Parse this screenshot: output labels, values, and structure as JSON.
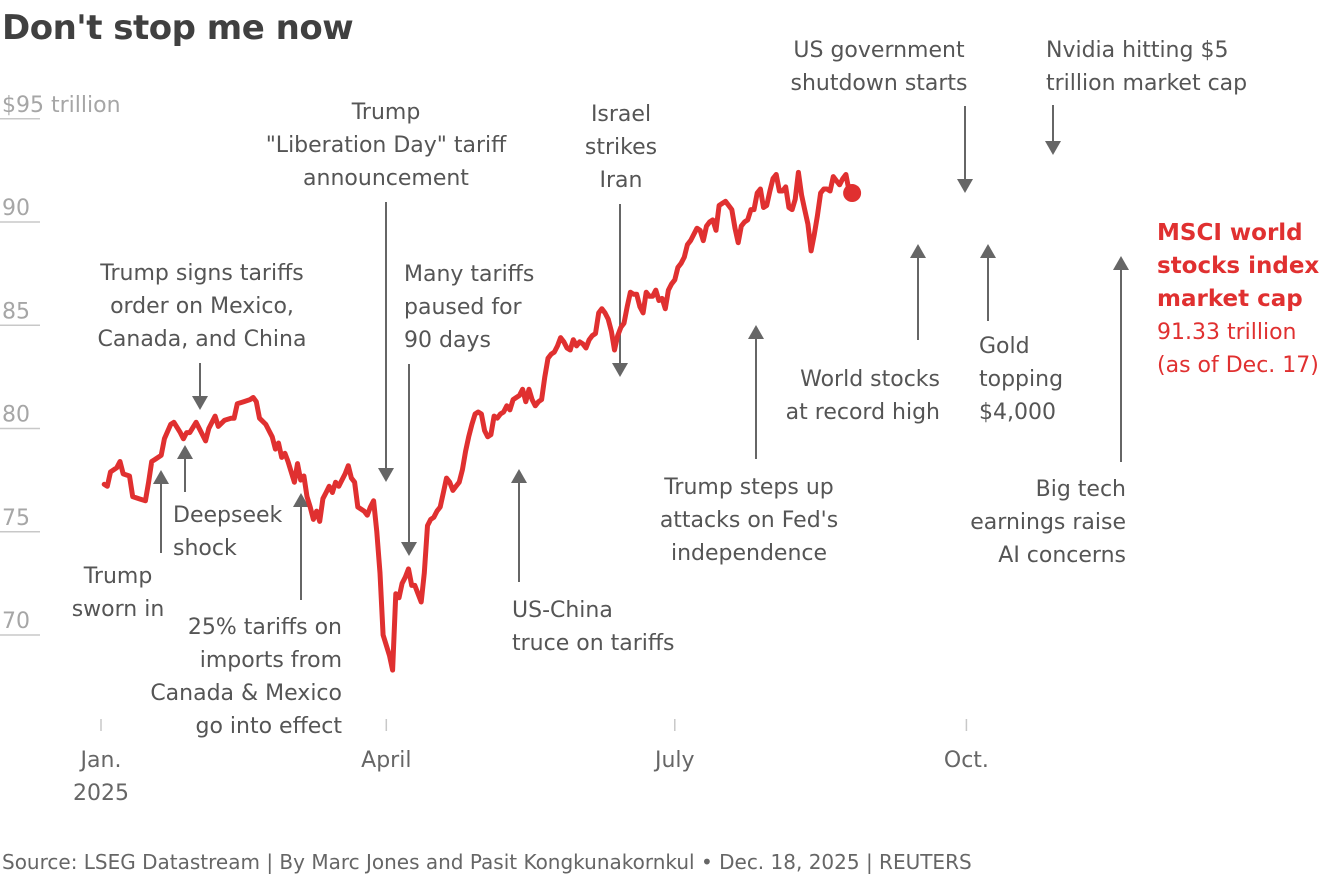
{
  "title": "Don't stop me now",
  "source": "Source: LSEG Datastream | By Marc Jones and Pasit Kongkunakornkul • Dec. 18, 2025 | REUTERS",
  "colors": {
    "line": "#e03030",
    "annotation": "#555555",
    "axis": "#a6a6a6"
  },
  "chart_data": {
    "type": "line",
    "title": "Don't stop me now",
    "ylabel": "$ trillion",
    "ylim": [
      68,
      95
    ],
    "y_ticks": [
      {
        "value": 95,
        "label": "$95",
        "suffix": " trillion"
      },
      {
        "value": 90,
        "label": "90"
      },
      {
        "value": 85,
        "label": "85"
      },
      {
        "value": 80,
        "label": "80"
      },
      {
        "value": 75,
        "label": "75"
      },
      {
        "value": 70,
        "label": "70"
      }
    ],
    "x_unit": "day of 2025",
    "xlim": [
      0,
      365
    ],
    "x_ticks": [
      {
        "value": 0,
        "lines": [
          "Jan.",
          "2025"
        ]
      },
      {
        "value": 90,
        "lines": [
          "April"
        ]
      },
      {
        "value": 181,
        "lines": [
          "July"
        ]
      },
      {
        "value": 273,
        "lines": [
          "Oct."
        ]
      }
    ],
    "series": [
      {
        "name": "MSCI world stocks index market cap",
        "points": [
          [
            1,
            77.3
          ],
          [
            2,
            77.2
          ],
          [
            3,
            77.9
          ],
          [
            5,
            78.1
          ],
          [
            6,
            78.4
          ],
          [
            7,
            77.8
          ],
          [
            9,
            77.7
          ],
          [
            10,
            76.7
          ],
          [
            12,
            76.6
          ],
          [
            14,
            76.5
          ],
          [
            15,
            77.4
          ],
          [
            16,
            78.4
          ],
          [
            17,
            78.5
          ],
          [
            19,
            78.7
          ],
          [
            20,
            79.5
          ],
          [
            22,
            80.2
          ],
          [
            23,
            80.3
          ],
          [
            25,
            79.8
          ],
          [
            26,
            79.5
          ],
          [
            27,
            79.8
          ],
          [
            28,
            79.8
          ],
          [
            30,
            80.3
          ],
          [
            31,
            80.0
          ],
          [
            33,
            79.4
          ],
          [
            34,
            80.0
          ],
          [
            36,
            80.6
          ],
          [
            37,
            80.1
          ],
          [
            39,
            80.4
          ],
          [
            41,
            80.5
          ],
          [
            42,
            80.5
          ],
          [
            43,
            81.2
          ],
          [
            45,
            81.3
          ],
          [
            47,
            81.4
          ],
          [
            48,
            81.5
          ],
          [
            49,
            81.3
          ],
          [
            50,
            80.5
          ],
          [
            52,
            80.2
          ],
          [
            53,
            79.9
          ],
          [
            54,
            79.6
          ],
          [
            55,
            79.0
          ],
          [
            56,
            79.3
          ],
          [
            57,
            78.6
          ],
          [
            58,
            78.8
          ],
          [
            59,
            78.4
          ],
          [
            60,
            77.9
          ],
          [
            61,
            77.4
          ],
          [
            62,
            78.3
          ],
          [
            63,
            77.5
          ],
          [
            64,
            77.7
          ],
          [
            65,
            76.7
          ],
          [
            66,
            76.2
          ],
          [
            67,
            75.6
          ],
          [
            68,
            76.0
          ],
          [
            69,
            75.5
          ],
          [
            70,
            76.6
          ],
          [
            71,
            76.9
          ],
          [
            72,
            77.2
          ],
          [
            73,
            76.9
          ],
          [
            74,
            77.4
          ],
          [
            75,
            77.2
          ],
          [
            76,
            77.5
          ],
          [
            77,
            77.8
          ],
          [
            78,
            78.2
          ],
          [
            79,
            77.6
          ],
          [
            80,
            77.4
          ],
          [
            81,
            76.2
          ],
          [
            83,
            76.0
          ],
          [
            84,
            75.8
          ],
          [
            85,
            76.2
          ],
          [
            86,
            76.5
          ],
          [
            87,
            75.0
          ],
          [
            88,
            73.0
          ],
          [
            89,
            70.0
          ],
          [
            91,
            69.0
          ],
          [
            92,
            68.3
          ],
          [
            93,
            72.0
          ],
          [
            94,
            71.8
          ],
          [
            95,
            72.5
          ],
          [
            96,
            72.8
          ],
          [
            97,
            73.2
          ],
          [
            98,
            72.4
          ],
          [
            99,
            72.4
          ],
          [
            100,
            72.0
          ],
          [
            101,
            71.6
          ],
          [
            102,
            73.0
          ],
          [
            103,
            75.3
          ],
          [
            104,
            75.6
          ],
          [
            105,
            75.7
          ],
          [
            106,
            76.0
          ],
          [
            107,
            76.2
          ],
          [
            108,
            76.9
          ],
          [
            109,
            77.6
          ],
          [
            110,
            77.4
          ],
          [
            111,
            77.0
          ],
          [
            112,
            77.2
          ],
          [
            113,
            77.4
          ],
          [
            114,
            78.0
          ],
          [
            115,
            78.9
          ],
          [
            116,
            79.6
          ],
          [
            117,
            80.2
          ],
          [
            118,
            80.7
          ],
          [
            119,
            80.8
          ],
          [
            120,
            80.7
          ],
          [
            121,
            79.9
          ],
          [
            122,
            79.6
          ],
          [
            123,
            79.7
          ],
          [
            124,
            80.6
          ],
          [
            125,
            80.5
          ],
          [
            126,
            80.7
          ],
          [
            127,
            80.8
          ],
          [
            128,
            81.1
          ],
          [
            129,
            80.9
          ],
          [
            130,
            81.4
          ],
          [
            131,
            81.5
          ],
          [
            132,
            81.6
          ],
          [
            133,
            81.9
          ],
          [
            134,
            81.3
          ],
          [
            135,
            81.9
          ],
          [
            136,
            81.4
          ],
          [
            137,
            81.1
          ],
          [
            138,
            81.3
          ],
          [
            139,
            81.4
          ],
          [
            140,
            82.5
          ],
          [
            141,
            83.4
          ],
          [
            142,
            83.6
          ],
          [
            143,
            83.7
          ],
          [
            144,
            84.0
          ],
          [
            145,
            84.4
          ],
          [
            146,
            84.2
          ],
          [
            147,
            83.9
          ],
          [
            148,
            83.8
          ],
          [
            149,
            84.3
          ],
          [
            150,
            84.0
          ],
          [
            151,
            84.2
          ],
          [
            152,
            84.1
          ],
          [
            153,
            83.9
          ],
          [
            154,
            84.3
          ],
          [
            155,
            84.5
          ],
          [
            156,
            84.6
          ],
          [
            157,
            85.6
          ],
          [
            158,
            85.8
          ],
          [
            159,
            85.6
          ],
          [
            160,
            85.3
          ],
          [
            161,
            84.7
          ],
          [
            162,
            83.8
          ],
          [
            163,
            84.5
          ],
          [
            164,
            84.9
          ],
          [
            165,
            85.1
          ],
          [
            166,
            85.9
          ],
          [
            167,
            86.6
          ],
          [
            168,
            86.5
          ],
          [
            169,
            86.5
          ],
          [
            170,
            85.9
          ],
          [
            171,
            85.6
          ],
          [
            172,
            86.6
          ],
          [
            173,
            86.4
          ],
          [
            174,
            86.4
          ],
          [
            175,
            86.7
          ],
          [
            176,
            86.2
          ],
          [
            177,
            86.3
          ],
          [
            178,
            85.8
          ],
          [
            179,
            86.7
          ],
          [
            180,
            87.0
          ],
          [
            181,
            87.2
          ],
          [
            182,
            87.8
          ],
          [
            183,
            88.0
          ],
          [
            184,
            88.3
          ],
          [
            185,
            88.9
          ],
          [
            186,
            89.1
          ],
          [
            187,
            89.4
          ],
          [
            188,
            89.7
          ],
          [
            189,
            89.6
          ],
          [
            190,
            89.1
          ],
          [
            191,
            89.8
          ],
          [
            192,
            90.0
          ],
          [
            193,
            90.1
          ],
          [
            194,
            89.6
          ],
          [
            195,
            90.8
          ],
          [
            196,
            90.9
          ],
          [
            197,
            91.0
          ],
          [
            198,
            90.8
          ],
          [
            199,
            90.6
          ],
          [
            200,
            89.7
          ],
          [
            201,
            89.0
          ],
          [
            202,
            89.8
          ],
          [
            203,
            90.0
          ],
          [
            204,
            90.1
          ],
          [
            205,
            90.6
          ],
          [
            206,
            90.6
          ],
          [
            207,
            91.4
          ],
          [
            208,
            91.6
          ],
          [
            209,
            90.7
          ],
          [
            210,
            90.8
          ],
          [
            211,
            91.5
          ],
          [
            212,
            92.1
          ],
          [
            213,
            92.3
          ],
          [
            214,
            91.5
          ],
          [
            215,
            91.5
          ],
          [
            216,
            91.7
          ],
          [
            217,
            90.7
          ],
          [
            218,
            90.6
          ],
          [
            219,
            91.1
          ],
          [
            220,
            92.4
          ],
          [
            221,
            91.3
          ],
          [
            222,
            90.6
          ],
          [
            223,
            89.9
          ],
          [
            224,
            88.6
          ],
          [
            225,
            89.4
          ],
          [
            226,
            90.3
          ],
          [
            227,
            91.4
          ],
          [
            228,
            91.6
          ],
          [
            229,
            91.6
          ],
          [
            230,
            91.5
          ],
          [
            231,
            92.2
          ],
          [
            232,
            92.0
          ],
          [
            233,
            91.8
          ],
          [
            234,
            92.1
          ],
          [
            235,
            92.3
          ],
          [
            236,
            91.5
          ]
        ],
        "end_value": 91.33,
        "end_label": {
          "bold_lines": [
            "MSCI world",
            "stocks index",
            "market cap"
          ],
          "value_line": "91.33 trillion",
          "date_line": "(as of Dec. 17)"
        }
      }
    ],
    "annotations": [
      {
        "id": "trump-sworn-in",
        "lines": [
          "Trump",
          "sworn in"
        ],
        "day": 20,
        "direction": "up"
      },
      {
        "id": "deepseek-shock",
        "lines": [
          "Deepseek",
          "shock"
        ],
        "day": 27,
        "direction": "up"
      },
      {
        "id": "trump-signs-tariffs",
        "lines": [
          "Trump signs tariffs",
          "order on Mexico,",
          "Canada, and China"
        ],
        "day": 31,
        "direction": "down"
      },
      {
        "id": "25-pct-tariffs",
        "lines": [
          "25% tariffs on",
          "imports from",
          "Canada & Mexico",
          "go into effect"
        ],
        "day": 63,
        "direction": "up"
      },
      {
        "id": "liberation-day",
        "lines": [
          "Trump",
          "\"Liberation Day\" tariff",
          "announcement"
        ],
        "day": 90,
        "direction": "down"
      },
      {
        "id": "tariffs-paused",
        "lines": [
          "Many tariffs",
          "paused for",
          "90 days"
        ],
        "day": 98,
        "direction": "down"
      },
      {
        "id": "us-china-truce",
        "lines": [
          "US-China",
          "truce on tariffs"
        ],
        "day": 132,
        "direction": "up"
      },
      {
        "id": "israel-strikes-iran",
        "lines": [
          "Israel",
          "strikes",
          "Iran"
        ],
        "day": 164,
        "direction": "down"
      },
      {
        "id": "trump-fed",
        "lines": [
          "Trump steps up",
          "attacks on Fed's",
          "independence"
        ],
        "day": 205,
        "direction": "up"
      },
      {
        "id": "world-stocks-record",
        "lines": [
          "World stocks",
          "at record high"
        ],
        "day": 258,
        "direction": "up"
      },
      {
        "id": "us-shutdown",
        "lines": [
          "US government",
          "shutdown starts"
        ],
        "day": 273,
        "direction": "down"
      },
      {
        "id": "gold-topping",
        "lines": [
          "Gold",
          "topping",
          "$4,000"
        ],
        "day": 280,
        "direction": "up"
      },
      {
        "id": "nvidia-5-trillion",
        "lines": [
          "Nvidia hitting $5",
          "trillion market cap"
        ],
        "day": 301,
        "direction": "down"
      },
      {
        "id": "big-tech-earnings",
        "lines": [
          "Big tech",
          "earnings raise",
          "AI concerns"
        ],
        "day": 321,
        "direction": "up"
      }
    ]
  }
}
